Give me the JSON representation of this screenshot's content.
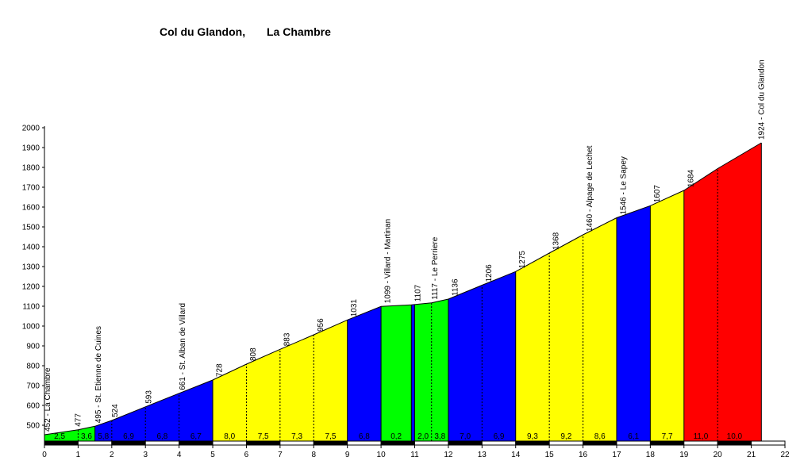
{
  "chart_data": {
    "type": "area",
    "title": "Col du Glandon,",
    "subtitle": "La Chambre",
    "xlim": [
      0,
      22
    ],
    "ylim": [
      420,
      2000
    ],
    "x_ticks": [
      0,
      1,
      2,
      3,
      4,
      5,
      6,
      7,
      8,
      9,
      10,
      11,
      12,
      13,
      14,
      15,
      16,
      17,
      18,
      19,
      20,
      21,
      22
    ],
    "y_ticks": [
      500,
      600,
      700,
      800,
      900,
      1000,
      1100,
      1200,
      1300,
      1400,
      1500,
      1600,
      1700,
      1800,
      1900,
      2000
    ],
    "grid": false,
    "colors": {
      "green": "#00ff00",
      "blue": "#0000ff",
      "yellow": "#ffff00",
      "red": "#ff0000"
    },
    "profile": [
      {
        "x": 0,
        "y": 452
      },
      {
        "x": 1,
        "y": 477
      },
      {
        "x": 1.5,
        "y": 495
      },
      {
        "x": 2,
        "y": 524
      },
      {
        "x": 3,
        "y": 593
      },
      {
        "x": 4,
        "y": 661
      },
      {
        "x": 5,
        "y": 728
      },
      {
        "x": 6,
        "y": 808
      },
      {
        "x": 7,
        "y": 883
      },
      {
        "x": 8,
        "y": 956
      },
      {
        "x": 9,
        "y": 1031
      },
      {
        "x": 10,
        "y": 1099
      },
      {
        "x": 10.9,
        "y": 1107
      },
      {
        "x": 11.5,
        "y": 1117
      },
      {
        "x": 12,
        "y": 1136
      },
      {
        "x": 13,
        "y": 1206
      },
      {
        "x": 14,
        "y": 1275
      },
      {
        "x": 15,
        "y": 1368
      },
      {
        "x": 16,
        "y": 1460
      },
      {
        "x": 17,
        "y": 1546
      },
      {
        "x": 18,
        "y": 1607
      },
      {
        "x": 19,
        "y": 1684
      },
      {
        "x": 20,
        "y": 1794
      },
      {
        "x": 21.3,
        "y": 1924
      }
    ],
    "segments": [
      {
        "x0": 0,
        "x1": 1.5,
        "color": "green",
        "dividers": [
          1
        ]
      },
      {
        "x0": 1.5,
        "x1": 5,
        "color": "blue",
        "dividers": [
          2,
          3,
          4
        ]
      },
      {
        "x0": 5,
        "x1": 9,
        "color": "yellow",
        "dividers": [
          6,
          7,
          8
        ]
      },
      {
        "x0": 9,
        "x1": 10,
        "color": "blue",
        "dividers": []
      },
      {
        "x0": 10,
        "x1": 10.9,
        "color": "green",
        "dividers": []
      },
      {
        "x0": 10.9,
        "x1": 11,
        "color": "blue",
        "dividers": []
      },
      {
        "x0": 11,
        "x1": 12,
        "color": "green",
        "dividers": [
          11.5
        ]
      },
      {
        "x0": 12,
        "x1": 14,
        "color": "blue",
        "dividers": [
          13
        ]
      },
      {
        "x0": 14,
        "x1": 17,
        "color": "yellow",
        "dividers": [
          15,
          16
        ]
      },
      {
        "x0": 17,
        "x1": 18,
        "color": "blue",
        "dividers": []
      },
      {
        "x0": 18,
        "x1": 19,
        "color": "yellow",
        "dividers": []
      },
      {
        "x0": 19,
        "x1": 21.3,
        "color": "red",
        "dividers": [
          20
        ]
      }
    ],
    "point_labels": [
      {
        "x": 0.1,
        "y": 452,
        "text": "452 - La Chambre"
      },
      {
        "x": 1,
        "y": 477,
        "text": "477"
      },
      {
        "x": 1.6,
        "y": 495,
        "text": "495 - St. Etienne de Cuines"
      },
      {
        "x": 2.1,
        "y": 524,
        "text": "524"
      },
      {
        "x": 3.1,
        "y": 593,
        "text": "593"
      },
      {
        "x": 4.1,
        "y": 661,
        "text": "661 - St. Alban de Villard"
      },
      {
        "x": 5.2,
        "y": 728,
        "text": "728"
      },
      {
        "x": 6.2,
        "y": 808,
        "text": "808"
      },
      {
        "x": 7.2,
        "y": 883,
        "text": "883"
      },
      {
        "x": 8.2,
        "y": 956,
        "text": "956"
      },
      {
        "x": 9.2,
        "y": 1031,
        "text": "1031"
      },
      {
        "x": 10.2,
        "y": 1099,
        "text": "1099 - Villard - Martinan"
      },
      {
        "x": 11.1,
        "y": 1107,
        "text": "1107"
      },
      {
        "x": 11.6,
        "y": 1117,
        "text": "1117 - Le Perriere"
      },
      {
        "x": 12.2,
        "y": 1136,
        "text": "1136"
      },
      {
        "x": 13.2,
        "y": 1206,
        "text": "1206"
      },
      {
        "x": 14.2,
        "y": 1275,
        "text": "1275"
      },
      {
        "x": 15.2,
        "y": 1368,
        "text": "1368"
      },
      {
        "x": 16.2,
        "y": 1460,
        "text": "1460 - Alpage de Lechet"
      },
      {
        "x": 17.2,
        "y": 1546,
        "text": "1546 - Le Sapey"
      },
      {
        "x": 18.2,
        "y": 1607,
        "text": "1607"
      },
      {
        "x": 19.2,
        "y": 1684,
        "text": "1684"
      },
      {
        "x": 21.3,
        "y": 1924,
        "text": "1924 - Col du Glandon"
      }
    ],
    "gradients": [
      {
        "x": 0.45,
        "text": "2,5"
      },
      {
        "x": 1.25,
        "text": "3,6"
      },
      {
        "x": 1.75,
        "text": "5,8"
      },
      {
        "x": 2.5,
        "text": "6,9"
      },
      {
        "x": 3.5,
        "text": "6,8"
      },
      {
        "x": 4.5,
        "text": "6,7"
      },
      {
        "x": 5.5,
        "text": "8,0"
      },
      {
        "x": 6.5,
        "text": "7,5"
      },
      {
        "x": 7.5,
        "text": "7,3"
      },
      {
        "x": 8.5,
        "text": "7,5"
      },
      {
        "x": 9.5,
        "text": "6,8"
      },
      {
        "x": 10.45,
        "text": "0,2"
      },
      {
        "x": 11.25,
        "text": "2,0"
      },
      {
        "x": 11.75,
        "text": "3,8"
      },
      {
        "x": 12.5,
        "text": "7,0"
      },
      {
        "x": 13.5,
        "text": "6,9"
      },
      {
        "x": 14.5,
        "text": "9,3"
      },
      {
        "x": 15.5,
        "text": "9,2"
      },
      {
        "x": 16.5,
        "text": "8,6"
      },
      {
        "x": 17.5,
        "text": "6,1"
      },
      {
        "x": 18.5,
        "text": "7,7"
      },
      {
        "x": 19.5,
        "text": "11,0"
      },
      {
        "x": 20.5,
        "text": "10,0"
      }
    ]
  }
}
